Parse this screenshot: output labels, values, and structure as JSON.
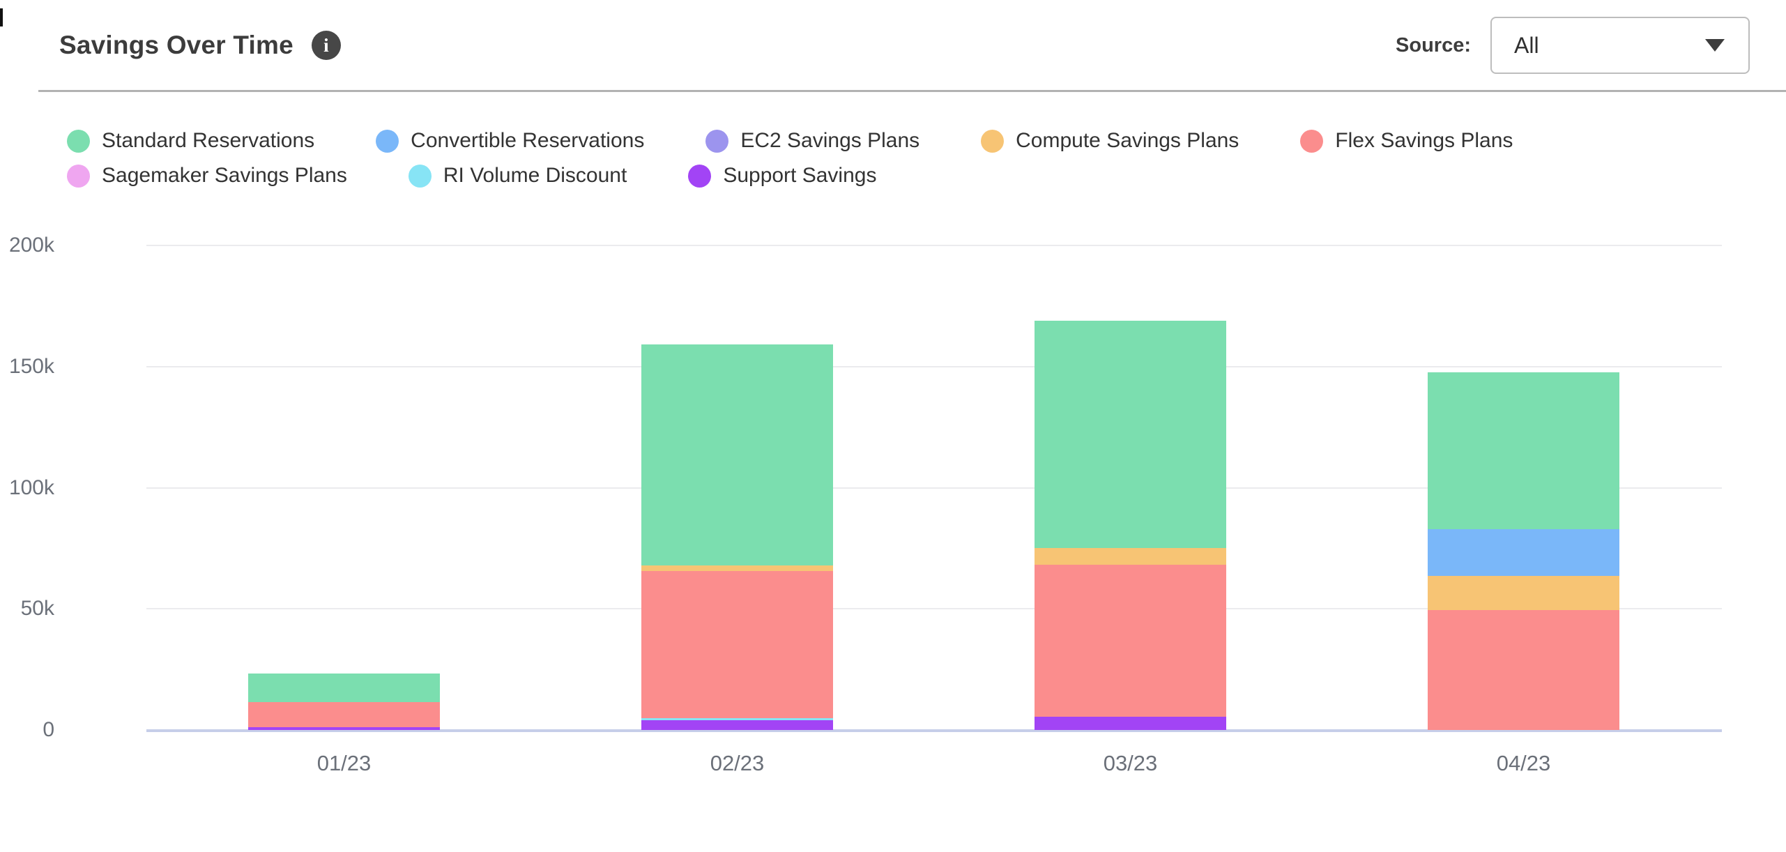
{
  "header": {
    "title": "Savings Over Time",
    "info_icon": "i",
    "source_label": "Source:",
    "source_value": "All"
  },
  "chart_data": {
    "type": "bar",
    "stacked": true,
    "title": "Savings Over Time",
    "xlabel": "",
    "ylabel": "",
    "unit": "thousands (k)",
    "categories": [
      "01/23",
      "02/23",
      "03/23",
      "04/23"
    ],
    "series": [
      {
        "name": "Standard Reservations",
        "color": "#7bdeaf",
        "values": [
          12.0,
          91.0,
          94.0,
          64.5
        ]
      },
      {
        "name": "Convertible Reservations",
        "color": "#7ab7f9",
        "values": [
          0,
          0,
          0,
          19.5
        ]
      },
      {
        "name": "EC2 Savings Plans",
        "color": "#9c94ee",
        "values": [
          0,
          0,
          0,
          0
        ]
      },
      {
        "name": "Compute Savings Plans",
        "color": "#f7c474",
        "values": [
          0,
          2.5,
          6.8,
          14.0
        ]
      },
      {
        "name": "Flex Savings Plans",
        "color": "#fb8d8d",
        "values": [
          10.2,
          60.5,
          62.8,
          49.5
        ]
      },
      {
        "name": "Sagemaker Savings Plans",
        "color": "#efa6f0",
        "values": [
          0,
          0,
          0,
          0
        ]
      },
      {
        "name": "RI Volume Discount",
        "color": "#87e4f5",
        "values": [
          0,
          1.0,
          0,
          0
        ]
      },
      {
        "name": "Support Savings",
        "color": "#a244f5",
        "values": [
          1.2,
          4.0,
          5.4,
          0
        ]
      }
    ],
    "totals": [
      23.4,
      159.0,
      169.0,
      147.5
    ],
    "stack_order_bottom_to_top": [
      "Support Savings",
      "RI Volume Discount",
      "Sagemaker Savings Plans",
      "Flex Savings Plans",
      "Compute Savings Plans",
      "EC2 Savings Plans",
      "Convertible Reservations",
      "Standard Reservations"
    ],
    "y_ticks": [
      {
        "label": "200k",
        "value": 200
      },
      {
        "label": "150k",
        "value": 150
      },
      {
        "label": "100k",
        "value": 100
      },
      {
        "label": "50k",
        "value": 50
      },
      {
        "label": "0",
        "value": 0
      }
    ],
    "y_max": 200,
    "grid": true,
    "legend_position": "top-left",
    "legend_rows": [
      5,
      3
    ]
  }
}
